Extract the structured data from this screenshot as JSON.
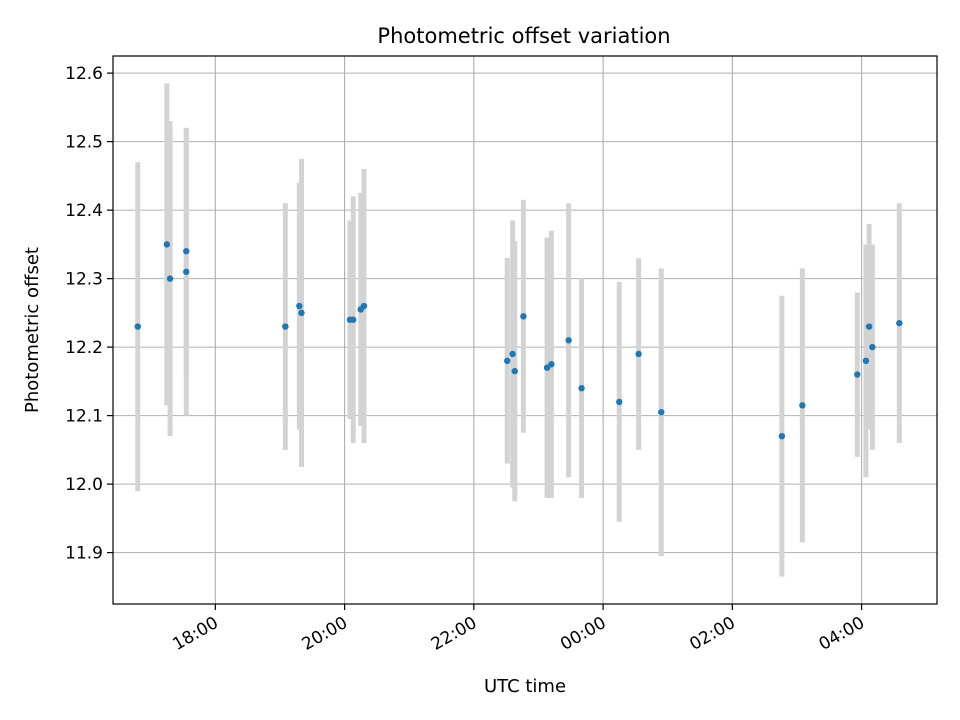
{
  "chart_data": {
    "type": "scatter",
    "title": "Photometric offset variation",
    "xlabel": "UTC time",
    "ylabel": "Photometric offset",
    "xlim": [
      "16:25",
      "05:10"
    ],
    "xlim_note": "time-of-day axis crossing midnight",
    "ylim": [
      11.825,
      12.625
    ],
    "x_ticks": [
      "18:00",
      "20:00",
      "22:00",
      "00:00",
      "02:00",
      "04:00"
    ],
    "y_ticks": [
      "11.9",
      "12.0",
      "12.1",
      "12.2",
      "12.3",
      "12.4",
      "12.5",
      "12.6"
    ],
    "grid": true,
    "errorbar_color": "#d3d3d3",
    "marker_color": "#1f77b4",
    "series": [
      {
        "points": [
          {
            "x": "16:48",
            "y": 12.23,
            "err": 0.24
          },
          {
            "x": "17:15",
            "y": 12.35,
            "err": 0.235
          },
          {
            "x": "17:18",
            "y": 12.3,
            "err": 0.23
          },
          {
            "x": "17:33",
            "y": 12.34,
            "err": 0.18
          },
          {
            "x": "17:33",
            "y": 12.31,
            "err": 0.21
          },
          {
            "x": "19:05",
            "y": 12.23,
            "err": 0.18
          },
          {
            "x": "19:18",
            "y": 12.26,
            "err": 0.18
          },
          {
            "x": "19:20",
            "y": 12.25,
            "err": 0.225
          },
          {
            "x": "20:05",
            "y": 12.24,
            "err": 0.145
          },
          {
            "x": "20:08",
            "y": 12.24,
            "err": 0.18
          },
          {
            "x": "20:15",
            "y": 12.255,
            "err": 0.17
          },
          {
            "x": "20:18",
            "y": 12.26,
            "err": 0.2
          },
          {
            "x": "22:31",
            "y": 12.18,
            "err": 0.15
          },
          {
            "x": "22:36",
            "y": 12.19,
            "err": 0.195
          },
          {
            "x": "22:38",
            "y": 12.165,
            "err": 0.19
          },
          {
            "x": "22:46",
            "y": 12.245,
            "err": 0.17
          },
          {
            "x": "23:08",
            "y": 12.17,
            "err": 0.19
          },
          {
            "x": "23:12",
            "y": 12.175,
            "err": 0.195
          },
          {
            "x": "23:28",
            "y": 12.21,
            "err": 0.2
          },
          {
            "x": "23:40",
            "y": 12.14,
            "err": 0.16
          },
          {
            "x": "00:15",
            "y": 12.12,
            "err": 0.175
          },
          {
            "x": "00:33",
            "y": 12.19,
            "err": 0.14
          },
          {
            "x": "00:54",
            "y": 12.105,
            "err": 0.21
          },
          {
            "x": "02:46",
            "y": 12.07,
            "err": 0.205
          },
          {
            "x": "03:05",
            "y": 12.115,
            "err": 0.2
          },
          {
            "x": "03:56",
            "y": 12.16,
            "err": 0.12
          },
          {
            "x": "04:04",
            "y": 12.18,
            "err": 0.17
          },
          {
            "x": "04:07",
            "y": 12.23,
            "err": 0.15
          },
          {
            "x": "04:10",
            "y": 12.2,
            "err": 0.15
          },
          {
            "x": "04:35",
            "y": 12.235,
            "err": 0.175
          }
        ]
      }
    ]
  }
}
